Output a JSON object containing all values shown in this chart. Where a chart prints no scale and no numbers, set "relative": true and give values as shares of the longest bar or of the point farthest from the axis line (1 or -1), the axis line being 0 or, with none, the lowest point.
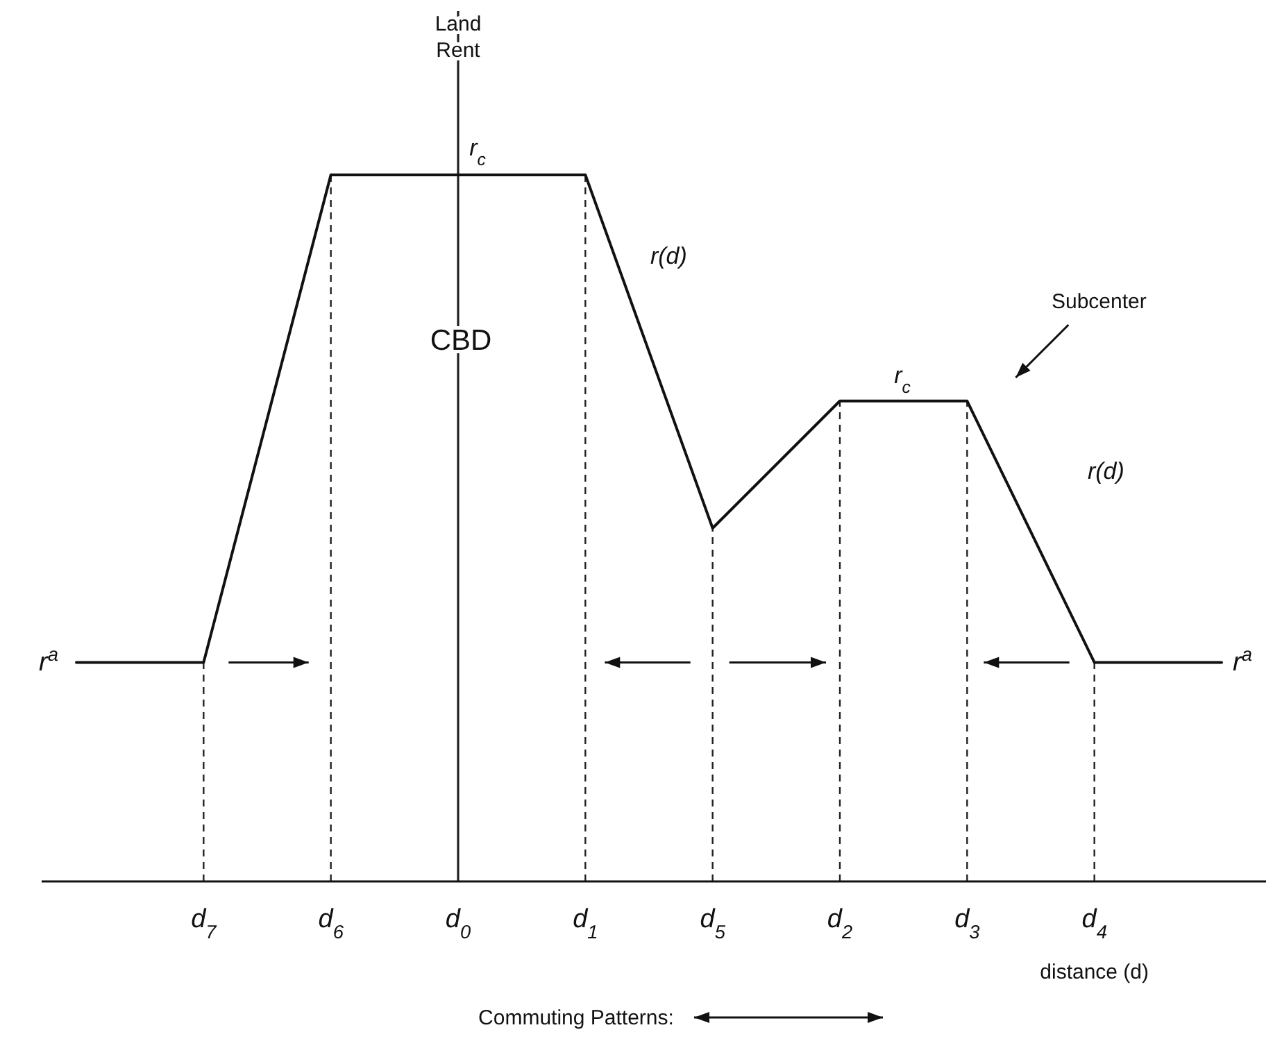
{
  "chart_data": {
    "type": "line",
    "relative": true,
    "xlabel": "distance (d)",
    "categories": [
      null,
      "d$_{7}$",
      "d$_{6}$",
      "d$_{0}$",
      "d$_{1}$",
      "d$_{5}$",
      "d$_{2}$",
      "d$_{3}$",
      "d$_{4}$",
      null
    ],
    "series": [
      {
        "color": "#111111",
        "values": [
          0.31,
          0.31,
          1,
          1,
          1,
          0.5,
          0.68,
          0.68,
          0.31,
          0.31
        ]
      }
    ],
    "ref_lines": [
      {
        "axis": "x",
        "value": "d$_{7}$",
        "line_style": "dashed"
      },
      {
        "axis": "x",
        "value": "d$_{6}$",
        "line_style": "dashed"
      },
      {
        "axis": "x",
        "value": "d$_{0}$",
        "line_style": "solid"
      },
      {
        "axis": "x",
        "value": "d$_{1}$",
        "line_style": "dashed"
      },
      {
        "axis": "x",
        "value": "d$_{5}$",
        "line_style": "dashed"
      },
      {
        "axis": "x",
        "value": "d$_{2}$",
        "line_style": "dashed"
      },
      {
        "axis": "x",
        "value": "d$_{3}$",
        "line_style": "dashed"
      },
      {
        "axis": "x",
        "value": "d$_{4}$",
        "line_style": "dashed"
      }
    ],
    "annotations": [
      "Land Rent",
      "r$_{c}$",
      "r(d)",
      "CBD",
      "Subcenter",
      "r$_{c}$",
      "r(d)",
      "r$^{a}$",
      "r$^{a}$",
      "Commuting Patterns:"
    ],
    "line_style": "solid",
    "marker": "none"
  }
}
